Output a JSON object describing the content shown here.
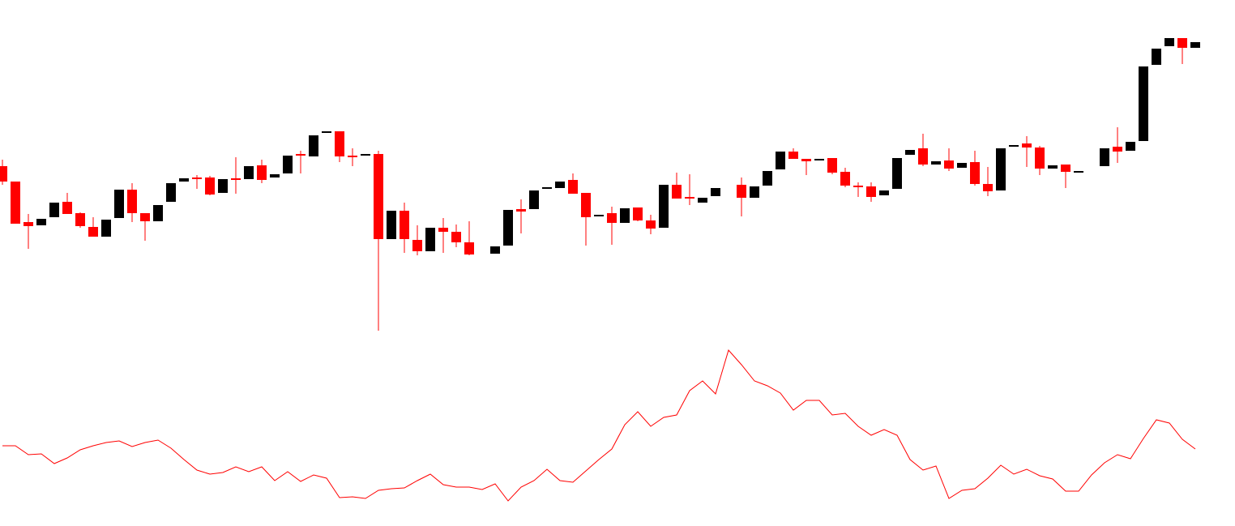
{
  "chart_data": [
    {
      "type": "candlestick",
      "up_color": "#000000",
      "down_color": "#ff0000",
      "ylim": [
        0,
        650
      ],
      "x": [
        0,
        1,
        2,
        3,
        4,
        5,
        6,
        7,
        8,
        9,
        10,
        11,
        12,
        13,
        14,
        15,
        16,
        17,
        18,
        19,
        20,
        21,
        22,
        23,
        24,
        25,
        26,
        27,
        28,
        29,
        30,
        31,
        32,
        33,
        34,
        35,
        36,
        38,
        39,
        40,
        41,
        42,
        43,
        44,
        45,
        46,
        47,
        48,
        49,
        50,
        51,
        52,
        53,
        54,
        55,
        57,
        58,
        59,
        60,
        61,
        62,
        63,
        64,
        65,
        66,
        67,
        68,
        69,
        70,
        71,
        72,
        73,
        74,
        75,
        76,
        77,
        78,
        79,
        80,
        81,
        82,
        83,
        85,
        86,
        87,
        88,
        89,
        90,
        91,
        92
      ],
      "open": [
        445,
        426,
        376,
        372,
        382,
        401,
        387,
        370,
        358,
        381,
        416,
        387,
        377,
        401,
        426,
        431,
        431,
        412,
        430,
        429,
        446,
        431,
        436,
        460,
        457,
        486,
        488,
        458,
        458,
        460,
        355,
        390,
        354,
        340,
        369,
        364,
        351,
        337,
        347,
        392,
        392,
        417,
        418,
        428,
        412,
        383,
        387,
        375,
        394,
        378,
        369,
        422,
        407,
        400,
        408,
        422,
        406,
        421,
        441,
        463,
        454,
        452,
        455,
        438,
        421,
        420,
        409,
        417,
        459,
        467,
        447,
        452,
        443,
        450,
        423,
        415,
        469,
        473,
        468,
        442,
        447,
        438,
        445,
        469,
        464,
        476,
        570,
        593,
        603,
        591
      ],
      "high": [
        453,
        426,
        386,
        380,
        400,
        412,
        388,
        382,
        379,
        416,
        424,
        387,
        397,
        424,
        430,
        434,
        433,
        429,
        456,
        445,
        453,
        435,
        458,
        464,
        483,
        488,
        488,
        467,
        460,
        464,
        390,
        400,
        372,
        369,
        381,
        373,
        377,
        346,
        391,
        404,
        415,
        419,
        426,
        436,
        412,
        385,
        395,
        393,
        394,
        385,
        422,
        437,
        435,
        406,
        418,
        431,
        420,
        439,
        463,
        467,
        454,
        454,
        455,
        443,
        425,
        425,
        415,
        455,
        465,
        485,
        451,
        467,
        449,
        464,
        444,
        467,
        471,
        482,
        470,
        446,
        447,
        439,
        467,
        493,
        475,
        568,
        590,
        603,
        603,
        598
      ],
      "low": [
        422,
        374,
        343,
        372,
        382,
        386,
        369,
        358,
        358,
        381,
        376,
        353,
        377,
        401,
        426,
        417,
        409,
        412,
        411,
        429,
        424,
        431,
        436,
        436,
        457,
        486,
        450,
        445,
        458,
        242,
        355,
        338,
        335,
        340,
        338,
        345,
        335,
        337,
        347,
        362,
        392,
        417,
        418,
        411,
        347,
        383,
        348,
        375,
        377,
        361,
        369,
        405,
        397,
        400,
        408,
        383,
        406,
        421,
        441,
        454,
        434,
        452,
        435,
        419,
        407,
        401,
        409,
        417,
        459,
        445,
        447,
        439,
        443,
        421,
        408,
        415,
        469,
        444,
        434,
        442,
        418,
        438,
        445,
        449,
        464,
        476,
        570,
        593,
        571,
        591
      ],
      "close": [
        426,
        374,
        371,
        380,
        400,
        386,
        371,
        358,
        379,
        416,
        387,
        377,
        397,
        424,
        430,
        429,
        410,
        429,
        428,
        445,
        428,
        435,
        458,
        458,
        483,
        488,
        457,
        456,
        460,
        355,
        390,
        355,
        340,
        369,
        364,
        351,
        336,
        346,
        391,
        389,
        415,
        419,
        426,
        411,
        382,
        385,
        375,
        393,
        378,
        368,
        422,
        405,
        405,
        406,
        418,
        406,
        420,
        439,
        463,
        454,
        451,
        454,
        437,
        421,
        419,
        407,
        415,
        455,
        465,
        447,
        451,
        442,
        449,
        423,
        414,
        467,
        471,
        468,
        442,
        446,
        438,
        439,
        467,
        463,
        475,
        568,
        590,
        603,
        591,
        598
      ]
    },
    {
      "type": "line",
      "color": "#ff0000",
      "ylim": [
        0,
        650
      ],
      "x": [
        0,
        1,
        2,
        3,
        4,
        5,
        6,
        7,
        8,
        9,
        10,
        11,
        12,
        13,
        14,
        15,
        16,
        17,
        18,
        19,
        20,
        21,
        22,
        23,
        24,
        25,
        26,
        27,
        28,
        29,
        30,
        31,
        32,
        33,
        34,
        35,
        36,
        37,
        38,
        39,
        40,
        41,
        42,
        43,
        44,
        45,
        46,
        47,
        48,
        49,
        50,
        51,
        52,
        53,
        54,
        55,
        56,
        57,
        58,
        59,
        60,
        61,
        62,
        63,
        64,
        65,
        66,
        67,
        68,
        69,
        70,
        71,
        72,
        73,
        74,
        75,
        76,
        77,
        78,
        79,
        80,
        81,
        82,
        83,
        84,
        85,
        86,
        87,
        88,
        89,
        90,
        91,
        92
      ],
      "values": [
        100,
        100,
        89,
        90,
        78,
        85,
        95,
        100,
        104,
        106,
        99,
        104,
        107,
        97,
        83,
        70,
        65,
        67,
        74,
        68,
        74,
        57,
        68,
        56,
        64,
        60,
        36,
        37,
        35,
        45,
        47,
        48,
        57,
        65,
        52,
        49,
        49,
        46,
        53,
        32,
        49,
        57,
        71,
        57,
        55,
        69,
        83,
        96,
        126,
        142,
        124,
        135,
        138,
        168,
        180,
        164,
        218,
        200,
        180,
        174,
        165,
        144,
        156,
        156,
        138,
        140,
        124,
        113,
        120,
        113,
        83,
        70,
        75,
        35,
        45,
        47,
        60,
        76,
        65,
        71,
        63,
        59,
        44,
        44,
        64,
        79,
        89,
        84,
        109,
        132,
        128,
        108,
        96
      ]
    }
  ]
}
